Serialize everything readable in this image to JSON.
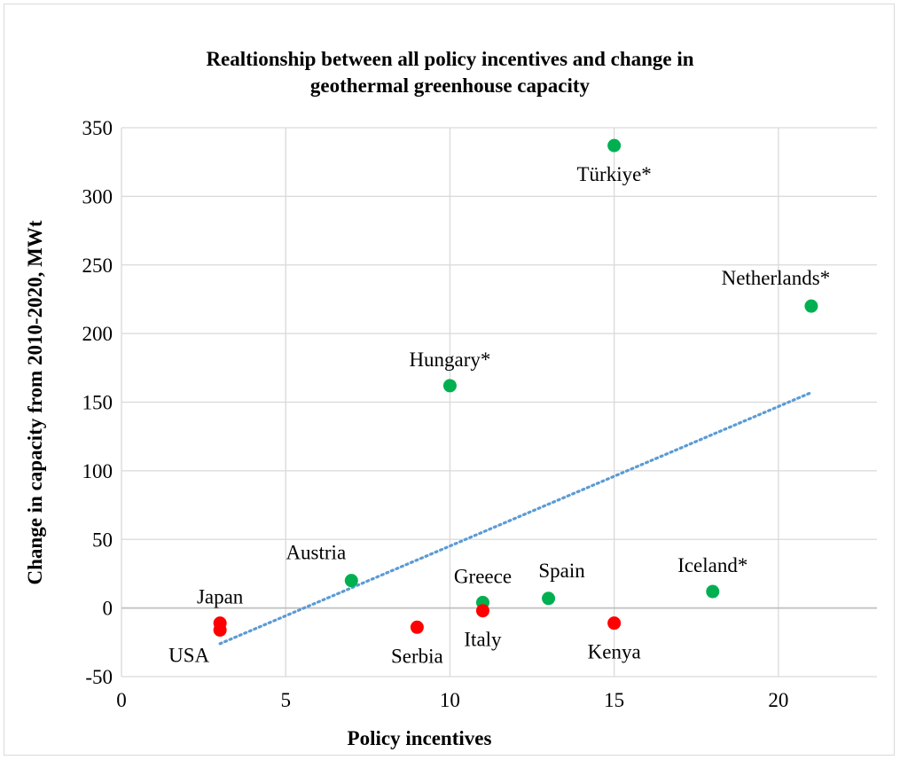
{
  "chart_data": {
    "type": "scatter",
    "title_lines": [
      "Realtionship between all policy incentives and change in",
      "geothermal greenhouse capacity"
    ],
    "xlabel": "Policy incentives",
    "ylabel": "Change in capacity from 2010-2020, MWt",
    "xlim": [
      0,
      23
    ],
    "ylim": [
      -50,
      350
    ],
    "xticks": [
      0,
      5,
      10,
      15,
      20
    ],
    "yticks": [
      -50,
      0,
      50,
      100,
      150,
      200,
      250,
      300,
      350
    ],
    "grid": true,
    "legend": "none",
    "colors": {
      "positive": "#00b050",
      "negative": "#ff0000",
      "trendline": "#5b9bd5",
      "grid": "#d9d9d9",
      "zero_axis": "#bfbfbf"
    },
    "points": [
      {
        "label": "Japan",
        "x": 3,
        "y": -11,
        "color": "#ff0000",
        "label_pos": "above"
      },
      {
        "label": "USA",
        "x": 3,
        "y": -16,
        "color": "#ff0000",
        "label_pos": "below-left"
      },
      {
        "label": "Austria",
        "x": 7,
        "y": 20,
        "color": "#00b050",
        "label_pos": "above-left"
      },
      {
        "label": "Serbia",
        "x": 9,
        "y": -14,
        "color": "#ff0000",
        "label_pos": "below"
      },
      {
        "label": "Hungary*",
        "x": 10,
        "y": 162,
        "color": "#00b050",
        "label_pos": "above"
      },
      {
        "label": "Greece",
        "x": 11,
        "y": 4,
        "color": "#00b050",
        "label_pos": "above"
      },
      {
        "label": "Italy",
        "x": 11,
        "y": -2,
        "color": "#ff0000",
        "label_pos": "below"
      },
      {
        "label": "Spain",
        "x": 13,
        "y": 7,
        "color": "#00b050",
        "label_pos": "above-right"
      },
      {
        "label": "Türkiye*",
        "x": 15,
        "y": 337,
        "color": "#00b050",
        "label_pos": "below"
      },
      {
        "label": "Kenya",
        "x": 15,
        "y": -11,
        "color": "#ff0000",
        "label_pos": "below"
      },
      {
        "label": "Iceland*",
        "x": 18,
        "y": 12,
        "color": "#00b050",
        "label_pos": "above"
      },
      {
        "label": "Netherlands*",
        "x": 21,
        "y": 220,
        "color": "#00b050",
        "label_pos": "above-left"
      }
    ],
    "trendline": {
      "type": "linear",
      "style": "dotted",
      "x": [
        3,
        21
      ],
      "y": [
        -26,
        157
      ]
    }
  }
}
